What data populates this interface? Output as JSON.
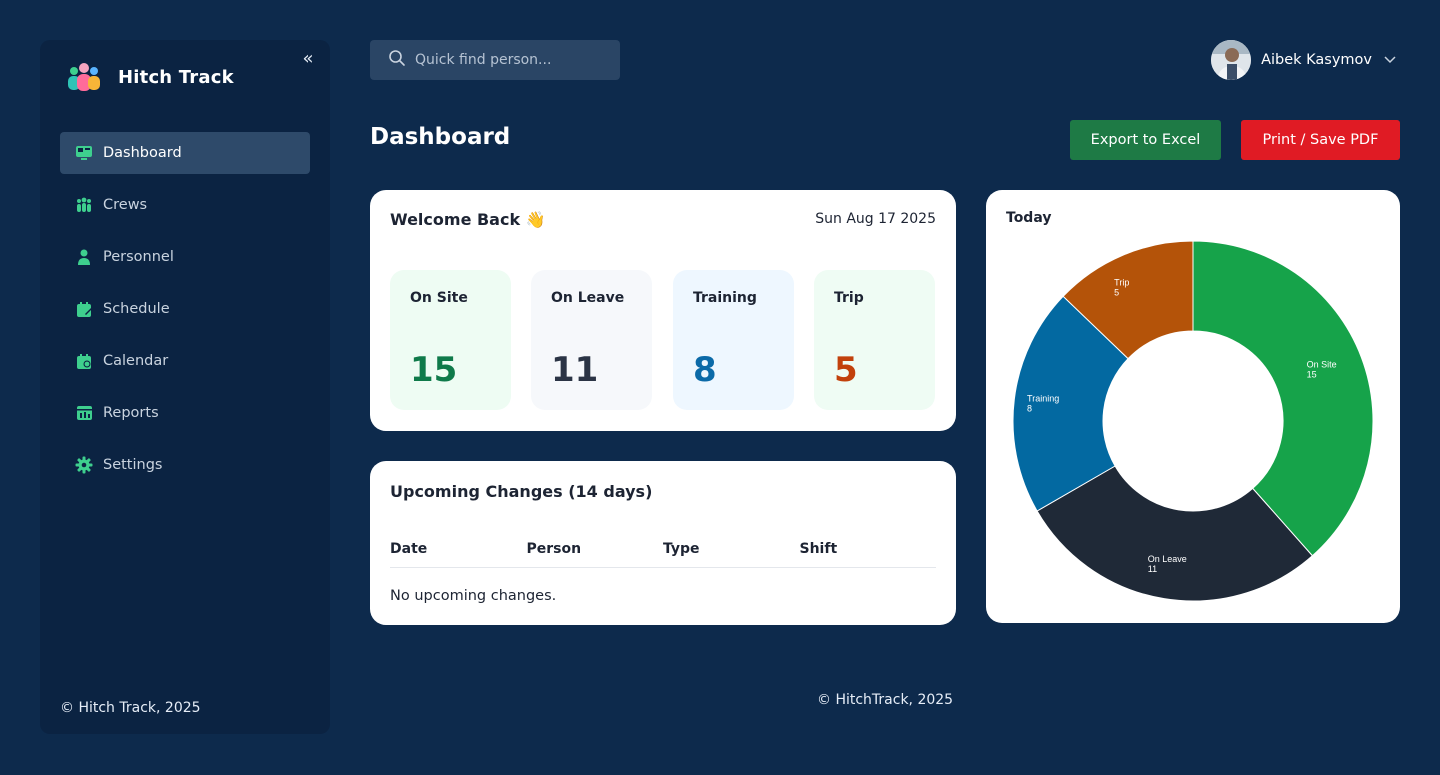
{
  "brand": {
    "title": "Hitch Track"
  },
  "sidebar": {
    "items": [
      {
        "label": "Dashboard",
        "icon": "dashboard-icon",
        "active": true
      },
      {
        "label": "Crews",
        "icon": "crews-icon"
      },
      {
        "label": "Personnel",
        "icon": "person-icon"
      },
      {
        "label": "Schedule",
        "icon": "schedule-icon"
      },
      {
        "label": "Calendar",
        "icon": "calendar-icon"
      },
      {
        "label": "Reports",
        "icon": "reports-icon"
      },
      {
        "label": "Settings",
        "icon": "gear-icon"
      }
    ],
    "footer": "© Hitch Track, 2025"
  },
  "search": {
    "placeholder": "Quick find person..."
  },
  "user": {
    "name": "Aibek Kasymov"
  },
  "page": {
    "title": "Dashboard"
  },
  "actions": {
    "export_label": "Export to Excel",
    "print_label": "Print / Save PDF"
  },
  "welcome": {
    "title": "Welcome Back 👋",
    "date": "Sun Aug 17 2025",
    "stats": [
      {
        "label": "On Site",
        "value": "15",
        "color": "#0f7a4a"
      },
      {
        "label": "On Leave",
        "value": "11",
        "color": "#2b3445"
      },
      {
        "label": "Training",
        "value": "8",
        "color": "#0b6aa8"
      },
      {
        "label": "Trip",
        "value": "5",
        "color": "#c2410c"
      }
    ]
  },
  "changes": {
    "title": "Upcoming Changes (14 days)",
    "columns": [
      "Date",
      "Person",
      "Type",
      "Shift"
    ],
    "empty_text": "No upcoming changes."
  },
  "today": {
    "title": "Today"
  },
  "chart_data": {
    "type": "pie",
    "title": "Today",
    "categories": [
      "On Site",
      "On Leave",
      "Training",
      "Trip"
    ],
    "values": [
      15,
      11,
      8,
      5
    ],
    "colors": [
      "#16a34a",
      "#1f2937",
      "#0369a1",
      "#b45309"
    ],
    "donut": true
  },
  "footer": {
    "text": "© HitchTrack, 2025"
  }
}
